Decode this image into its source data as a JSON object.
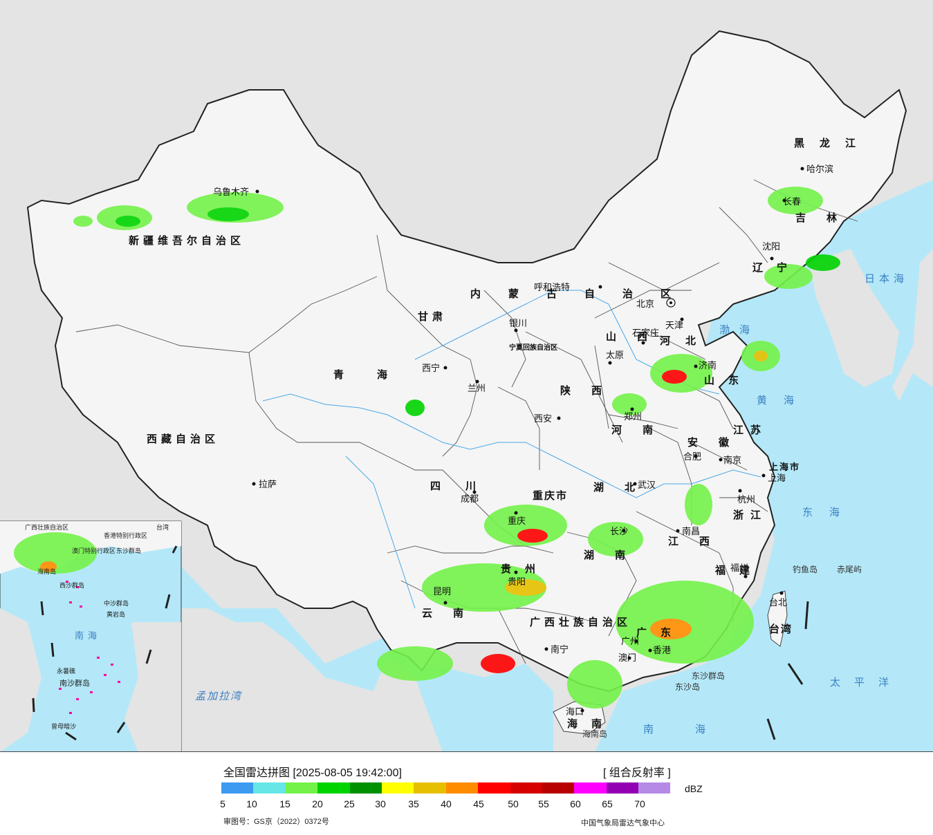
{
  "header": {
    "title": "全国雷达拼图 [2025-08-05 19:42:00]",
    "product": "[ 组合反射率 ]",
    "unit": "dBZ",
    "approval_no": "审图号：GS京（2022）0372号",
    "agency": "中国气象局雷达气象中心"
  },
  "legend": {
    "ticks": [
      "5",
      "10",
      "15",
      "20",
      "25",
      "30",
      "35",
      "40",
      "45",
      "50",
      "55",
      "60",
      "65",
      "70"
    ],
    "colors": [
      "#3d9af0",
      "#66e6e6",
      "#74f24a",
      "#00d400",
      "#009000",
      "#ffff00",
      "#e6c000",
      "#ff8c00",
      "#ff0000",
      "#d60000",
      "#b80000",
      "#ff00ff",
      "#9300b4",
      "#b48ae6"
    ]
  },
  "map": {
    "colors": {
      "sea": "#b4e8f8",
      "land": "#f5f5f5",
      "outside": "#e4e4e4"
    },
    "provinces": [
      "新疆维吾尔自治区",
      "西藏自治区",
      "青海",
      "甘肃",
      "四川",
      "云南",
      "广西壮族自治区",
      "内蒙古自治区",
      "黑龙江",
      "吉林",
      "辽宁",
      "河北",
      "山西",
      "陕西",
      "河南",
      "山东",
      "江苏",
      "安徽",
      "湖北",
      "湖南",
      "江西",
      "浙江",
      "福建",
      "广东",
      "贵州",
      "重庆市",
      "海南",
      "台湾",
      "宁夏回族自治区",
      "上海市"
    ],
    "cities": [
      "乌鲁木齐",
      "拉萨",
      "西宁",
      "兰州",
      "银川",
      "呼和浩特",
      "北京",
      "天津",
      "石家庄",
      "太原",
      "西安",
      "郑州",
      "济南",
      "南京",
      "合肥",
      "上海",
      "杭州",
      "武汉",
      "长沙",
      "南昌",
      "福州",
      "台北",
      "广州",
      "香港",
      "澳门",
      "南宁",
      "海口",
      "贵阳",
      "昆明",
      "成都",
      "重庆",
      "哈尔滨",
      "长春",
      "沈阳"
    ],
    "seas": [
      "日本海",
      "渤海",
      "黄海",
      "东海",
      "太平洋",
      "南海",
      "孟加拉湾"
    ],
    "islands": [
      "钓鱼岛",
      "赤尾屿",
      "东沙群岛",
      "东沙岛",
      "海南岛"
    ],
    "inset_labels": [
      "广西壮族自治区",
      "台湾",
      "香港特别行政区",
      "澳门特别行政区",
      "东沙群岛",
      "西沙群岛",
      "中沙群岛",
      "黄岩岛",
      "南海",
      "南沙群岛",
      "永暑礁",
      "曾母暗沙",
      "海南岛"
    ]
  }
}
